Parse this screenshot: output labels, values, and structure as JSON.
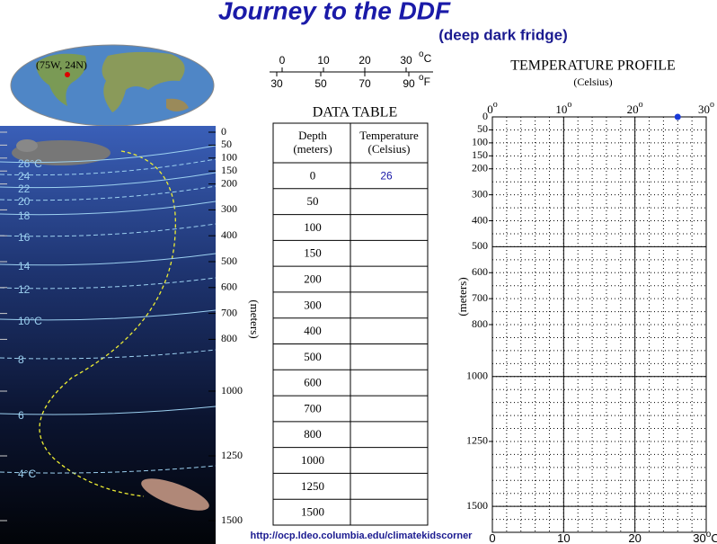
{
  "header": {
    "title": "Journey to the DDF",
    "subtitle": "(deep dark fridge)"
  },
  "map": {
    "location_label": "(75W, 24N)"
  },
  "conversion_scale": {
    "celsius": [
      0,
      10,
      20,
      30
    ],
    "celsius_unit": "C",
    "fahrenheit": [
      30,
      50,
      70,
      90
    ],
    "fahrenheit_unit": "F",
    "degree": "o"
  },
  "data_table": {
    "title": "DATA TABLE",
    "depth_header": [
      "Depth",
      "(meters)"
    ],
    "temperature_header": [
      "Temperature",
      "(Celsius)"
    ],
    "depths": [
      0,
      50,
      100,
      150,
      200,
      300,
      400,
      500,
      600,
      700,
      800,
      1000,
      1250,
      1500
    ],
    "temperatures": [
      26
    ]
  },
  "ocean_section": {
    "depth_ticks": [
      0,
      50,
      100,
      150,
      200,
      300,
      400,
      500,
      600,
      700,
      800,
      1000,
      1250,
      1500
    ],
    "axis_label": "(meters)",
    "isotherm_labels": [
      "26°C",
      "24",
      "22",
      "20",
      "18",
      "16",
      "14",
      "12",
      "10°C",
      "8",
      "6",
      "4°C"
    ]
  },
  "profile_chart": {
    "title": "TEMPERATURE PROFILE",
    "subtitle": "(Celsius)",
    "y_label": "(meters)",
    "xlim": [
      0,
      30
    ],
    "xticks": [
      0,
      10,
      20,
      30
    ],
    "ylim": [
      0,
      1600
    ],
    "yticks": [
      0,
      50,
      100,
      150,
      200,
      300,
      400,
      500,
      600,
      700,
      800,
      1000,
      1250,
      1500
    ]
  },
  "footer": {
    "url": "http://ocp.ldeo.columbia.edu/climatekidscorner"
  }
}
